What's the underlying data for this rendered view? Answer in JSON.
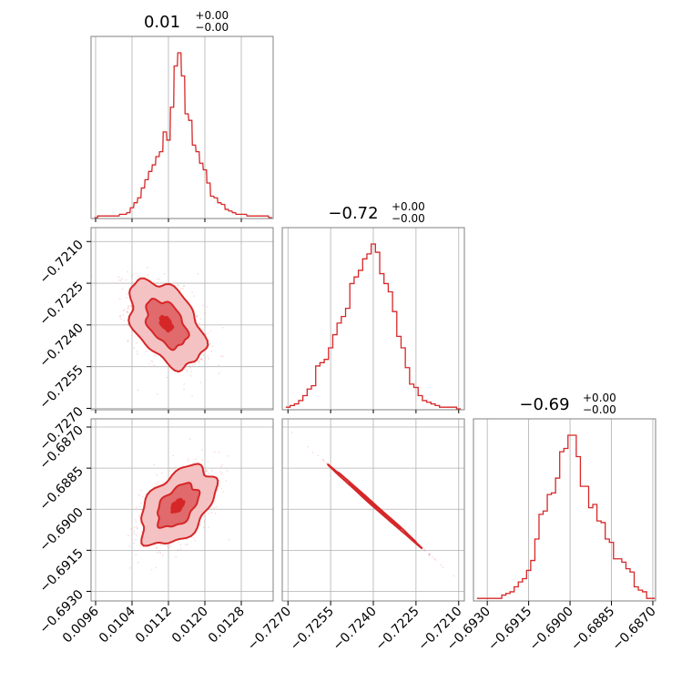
{
  "colors": {
    "accent": "#d62728",
    "fill_dark": "#e06a6c",
    "fill_light": "#f4c2c3",
    "grid": "#b0b0b0",
    "frame": "#808080"
  },
  "chart_data": [
    {
      "type": "histogram",
      "panel": "1d-param-1",
      "title": {
        "value": "0.01",
        "upper": "+0.00",
        "lower": "−0.00"
      },
      "xlim": [
        0.0095,
        0.0135
      ],
      "bin_centers": [
        0.00961,
        0.00968,
        0.00976,
        0.00984,
        0.00992,
        0.01,
        0.01008,
        0.01016,
        0.01024,
        0.01032,
        0.0104,
        0.01048,
        0.01056,
        0.01064,
        0.01072,
        0.0108,
        0.01088,
        0.01096,
        0.01104,
        0.01112,
        0.0112,
        0.01128,
        0.01136,
        0.01144,
        0.01152,
        0.0116,
        0.01168,
        0.01176,
        0.01184,
        0.01192,
        0.012,
        0.01208,
        0.01216,
        0.01224,
        0.01232,
        0.0124,
        0.01248,
        0.01256,
        0.01264,
        0.01272,
        0.0128,
        0.01288,
        0.01296,
        0.01304,
        0.01312,
        0.0132,
        0.01328,
        0.01336,
        0.01344
      ],
      "counts": [
        0,
        1,
        1,
        1,
        1,
        1,
        1,
        2,
        2,
        3,
        6,
        9,
        12,
        18,
        23,
        28,
        32,
        37,
        40,
        52,
        47,
        67,
        92,
        100,
        86,
        63,
        59,
        44,
        40,
        33,
        29,
        21,
        13,
        12,
        9,
        8,
        5,
        4,
        3,
        2,
        2,
        2,
        1,
        1,
        1,
        1,
        1,
        1,
        0
      ]
    },
    {
      "type": "histogram",
      "panel": "1d-param-2",
      "title": {
        "value": "−0.72",
        "upper": "+0.00",
        "lower": "−0.00"
      },
      "xlim": [
        -0.7272,
        -0.7208
      ],
      "bin_centers": [
        -0.727,
        -0.72685,
        -0.7267,
        -0.72655,
        -0.7264,
        -0.72625,
        -0.7261,
        -0.72595,
        -0.7258,
        -0.72565,
        -0.7255,
        -0.72535,
        -0.7252,
        -0.72505,
        -0.7249,
        -0.72475,
        -0.7246,
        -0.72445,
        -0.7243,
        -0.72415,
        -0.724,
        -0.72385,
        -0.7237,
        -0.72355,
        -0.7234,
        -0.72325,
        -0.7231,
        -0.72295,
        -0.7228,
        -0.72265,
        -0.7225,
        -0.72235,
        -0.7222,
        -0.72205,
        -0.7219,
        -0.72175,
        -0.7216,
        -0.72145,
        -0.7213,
        -0.72115,
        -0.721
      ],
      "counts": [
        1,
        2,
        3,
        5,
        8,
        12,
        14,
        26,
        28,
        30,
        37,
        45,
        52,
        56,
        61,
        76,
        80,
        84,
        91,
        94,
        100,
        95,
        82,
        76,
        71,
        59,
        44,
        37,
        25,
        15,
        13,
        8,
        5,
        4,
        3,
        2,
        1,
        1,
        1,
        1,
        0
      ]
    },
    {
      "type": "histogram",
      "panel": "1d-param-3",
      "title": {
        "value": "−0.69",
        "upper": "+0.00",
        "lower": "−0.00"
      },
      "xlim": [
        -0.6935,
        -0.6869
      ],
      "bin_centers": [
        -0.6933,
        -0.69315,
        -0.693,
        -0.69285,
        -0.6927,
        -0.69255,
        -0.6924,
        -0.69225,
        -0.6921,
        -0.69195,
        -0.6918,
        -0.69165,
        -0.6915,
        -0.69135,
        -0.6912,
        -0.69105,
        -0.6909,
        -0.69075,
        -0.6906,
        -0.69045,
        -0.6903,
        -0.69015,
        -0.69,
        -0.68985,
        -0.6897,
        -0.68955,
        -0.6894,
        -0.68925,
        -0.6891,
        -0.68895,
        -0.6888,
        -0.68865,
        -0.6885,
        -0.68835,
        -0.6882,
        -0.68805,
        -0.6879,
        -0.68775,
        -0.6876,
        -0.68745,
        -0.6873,
        -0.68715,
        -0.687
      ],
      "counts": [
        1,
        1,
        1,
        1,
        1,
        1,
        3,
        4,
        5,
        8,
        11,
        13,
        18,
        24,
        37,
        52,
        54,
        64,
        65,
        74,
        90,
        92,
        100,
        100,
        87,
        69,
        69,
        56,
        58,
        48,
        47,
        37,
        35,
        25,
        25,
        23,
        19,
        17,
        8,
        6,
        5,
        1,
        1
      ]
    },
    {
      "type": "contour2d",
      "panel": "2d-param-1-vs-param-2",
      "xlim": [
        0.0095,
        0.0135
      ],
      "ylim": [
        -0.72705,
        -0.7205
      ],
      "center": [
        0.01115,
        -0.72395
      ],
      "sigma": [
        0.00041,
        0.00078
      ],
      "correlation": -0.45
    },
    {
      "type": "contour2d",
      "panel": "2d-param-1-vs-param-3",
      "xlim": [
        0.0095,
        0.0135
      ],
      "ylim": [
        -0.69335,
        -0.6867
      ],
      "center": [
        0.0114,
        -0.68988
      ],
      "sigma": [
        0.00041,
        0.00072
      ],
      "correlation": 0.47
    },
    {
      "type": "contour2d",
      "panel": "2d-param-2-vs-param-3",
      "xlim": [
        -0.7272,
        -0.7208
      ],
      "ylim": [
        -0.69335,
        -0.6867
      ],
      "center": [
        -0.72395,
        -0.68988
      ],
      "sigma": [
        0.00078,
        0.00072
      ],
      "correlation": -0.999
    }
  ],
  "axes": {
    "x_ticks_col1": [
      "0.0096",
      "0.0104",
      "0.0112",
      "0.0120",
      "0.0128"
    ],
    "x_ticks_col1_values": [
      0.0096,
      0.0104,
      0.0112,
      0.012,
      0.0128
    ],
    "x_ticks_col2": [
      "−0.7270",
      "−0.7255",
      "−0.7240",
      "−0.7225",
      "−0.7210"
    ],
    "x_ticks_col2_values": [
      -0.727,
      -0.7255,
      -0.724,
      -0.7225,
      -0.721
    ],
    "x_ticks_col3": [
      "−0.6930",
      "−0.6915",
      "−0.6900",
      "−0.6885",
      "−0.6870"
    ],
    "x_ticks_col3_values": [
      -0.693,
      -0.6915,
      -0.69,
      -0.6885,
      -0.687
    ],
    "y_ticks_row2": [
      "−0.7210",
      "−0.7225",
      "−0.7240",
      "−0.7255",
      "−0.7270"
    ],
    "y_ticks_row2_values": [
      -0.721,
      -0.7225,
      -0.724,
      -0.7255,
      -0.727
    ],
    "y_ticks_row3": [
      "−0.6870",
      "−0.6885",
      "−0.6900",
      "−0.6915",
      "−0.6930"
    ],
    "y_ticks_row3_values": [
      -0.687,
      -0.6885,
      -0.69,
      -0.6915,
      -0.693
    ]
  }
}
